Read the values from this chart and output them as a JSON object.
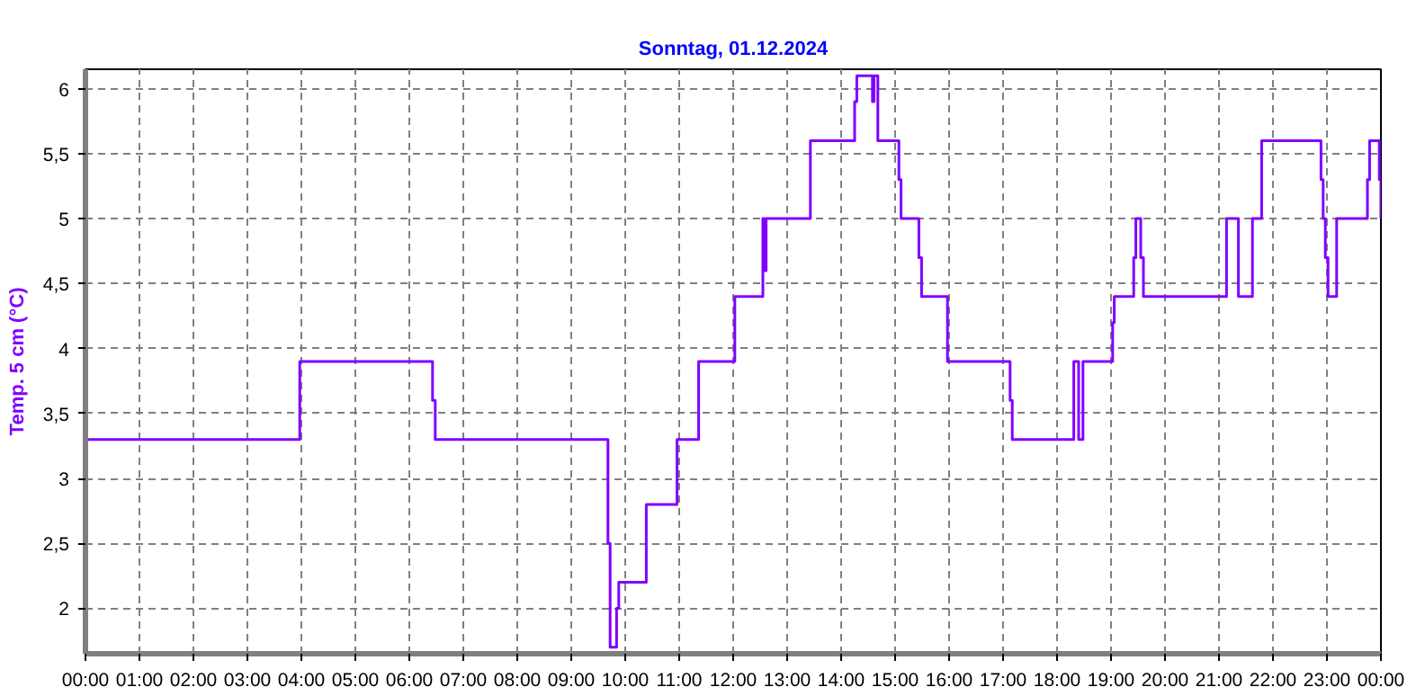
{
  "chart_data": {
    "type": "step",
    "title": "Sonntag, 01.12.2024",
    "ylabel": "Temp. 5 cm (°C)",
    "x": [
      0,
      3.97,
      6.43,
      6.48,
      9.68,
      9.72,
      9.84,
      9.88,
      10.39,
      10.96,
      11.36,
      12.03,
      12.55,
      12.58,
      12.61,
      13.43,
      14.25,
      14.29,
      14.58,
      14.61,
      14.68,
      15.07,
      15.11,
      15.44,
      15.49,
      15.97,
      17.13,
      17.17,
      18.31,
      18.4,
      18.48,
      19.03,
      19.06,
      19.42,
      19.46,
      19.55,
      19.6,
      21.14,
      21.36,
      21.62,
      21.79,
      22.89,
      22.93,
      22.97,
      23.02,
      23.18,
      23.75,
      23.79,
      23.97,
      24.0
    ],
    "series": [
      {
        "color": "#8000ff",
        "values": [
          3.3,
          3.9,
          3.6,
          3.3,
          2.5,
          1.7,
          2.0,
          2.2,
          2.8,
          3.3,
          3.9,
          4.4,
          5.0,
          4.6,
          5.0,
          5.6,
          5.9,
          6.1,
          5.9,
          6.1,
          5.6,
          5.3,
          5.0,
          4.7,
          4.4,
          3.9,
          3.6,
          3.3,
          3.9,
          3.3,
          3.9,
          4.2,
          4.4,
          4.7,
          5.0,
          4.7,
          4.4,
          5.0,
          4.4,
          5.0,
          5.6,
          5.3,
          5.0,
          4.7,
          4.4,
          5.0,
          5.3,
          5.6,
          5.3,
          5.0
        ]
      }
    ],
    "xlim": [
      0,
      24
    ],
    "ylim": [
      1.65,
      6.15
    ],
    "xticks": [
      {
        "value": 0,
        "label": "00:00"
      },
      {
        "value": 1,
        "label": "01:00"
      },
      {
        "value": 2,
        "label": "02:00"
      },
      {
        "value": 3,
        "label": "03:00"
      },
      {
        "value": 4,
        "label": "04:00"
      },
      {
        "value": 5,
        "label": "05:00"
      },
      {
        "value": 6,
        "label": "06:00"
      },
      {
        "value": 7,
        "label": "07:00"
      },
      {
        "value": 8,
        "label": "08:00"
      },
      {
        "value": 9,
        "label": "09:00"
      },
      {
        "value": 10,
        "label": "10:00"
      },
      {
        "value": 11,
        "label": "11:00"
      },
      {
        "value": 12,
        "label": "12:00"
      },
      {
        "value": 13,
        "label": "13:00"
      },
      {
        "value": 14,
        "label": "14:00"
      },
      {
        "value": 15,
        "label": "15:00"
      },
      {
        "value": 16,
        "label": "16:00"
      },
      {
        "value": 17,
        "label": "17:00"
      },
      {
        "value": 18,
        "label": "18:00"
      },
      {
        "value": 19,
        "label": "19:00"
      },
      {
        "value": 20,
        "label": "20:00"
      },
      {
        "value": 21,
        "label": "21:00"
      },
      {
        "value": 22,
        "label": "22:00"
      },
      {
        "value": 23,
        "label": "23:00"
      },
      {
        "value": 24,
        "label": "00:00"
      }
    ],
    "yticks": [
      2,
      {
        "value": 2.5,
        "label": "2,5"
      },
      3,
      {
        "value": 3.5,
        "label": "3,5"
      },
      4,
      {
        "value": 4.5,
        "label": "4,5"
      },
      5,
      {
        "value": 5.5,
        "label": "5,5"
      },
      6
    ],
    "grid": true,
    "line_style": "solid"
  }
}
